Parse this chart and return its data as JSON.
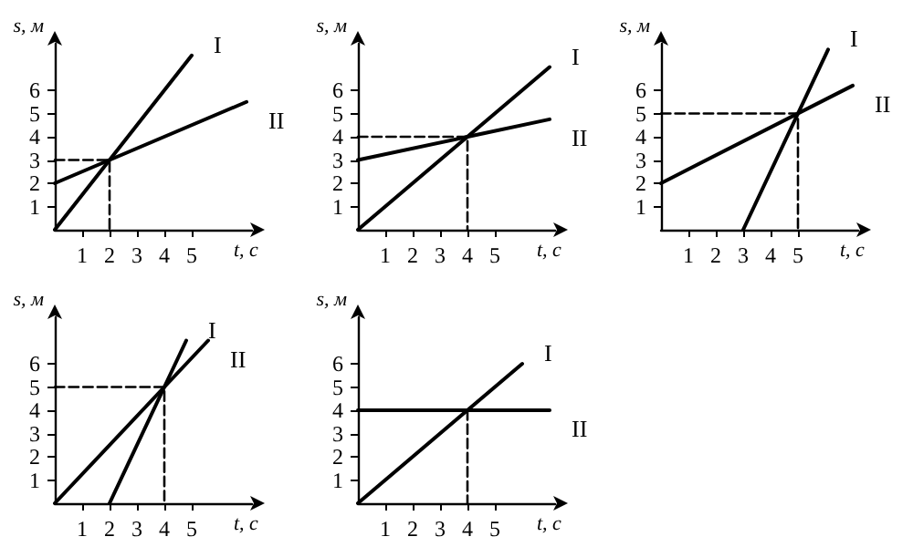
{
  "chart_data": [
    {
      "type": "line",
      "xlabel": "t, с",
      "ylabel": "s, м",
      "xlim": [
        0,
        7.2
      ],
      "ylim": [
        0,
        8
      ],
      "xticks": [
        1,
        2,
        3,
        4,
        5
      ],
      "yticks": [
        1,
        2,
        3,
        4,
        5,
        6
      ],
      "marker": "none",
      "series": [
        {
          "name": "I",
          "color": "#000000",
          "x": [
            0,
            5
          ],
          "values": [
            0,
            7.5
          ]
        },
        {
          "name": "II",
          "color": "#000000",
          "x": [
            0,
            7
          ],
          "values": [
            2,
            5.5
          ]
        },
        {
          "color": "#000000",
          "line_style": "dashed",
          "x": [
            0,
            2,
            2
          ],
          "values": [
            3,
            3,
            0
          ]
        }
      ]
    },
    {
      "type": "line",
      "xlabel": "t, с",
      "ylabel": "s, м",
      "xlim": [
        0,
        7.2
      ],
      "ylim": [
        0,
        8
      ],
      "xticks": [
        1,
        2,
        3,
        4,
        5
      ],
      "yticks": [
        1,
        2,
        3,
        4,
        5,
        6
      ],
      "marker": "none",
      "series": [
        {
          "name": "I",
          "color": "#000000",
          "x": [
            0,
            7
          ],
          "values": [
            0,
            7
          ]
        },
        {
          "name": "II",
          "color": "#000000",
          "x": [
            0,
            7
          ],
          "values": [
            3,
            4.75
          ]
        },
        {
          "color": "#000000",
          "line_style": "dashed",
          "x": [
            0,
            4,
            4
          ],
          "values": [
            4,
            4,
            0
          ]
        }
      ]
    },
    {
      "type": "line",
      "xlabel": "t, с",
      "ylabel": "s, м",
      "xlim": [
        0,
        7.2
      ],
      "ylim": [
        0,
        8
      ],
      "xticks": [
        1,
        2,
        3,
        4,
        5
      ],
      "yticks": [
        1,
        2,
        3,
        4,
        5,
        6
      ],
      "marker": "none",
      "series": [
        {
          "name": "I",
          "color": "#000000",
          "x": [
            3,
            6.1
          ],
          "values": [
            0,
            7.75
          ]
        },
        {
          "name": "II",
          "color": "#000000",
          "x": [
            0,
            7
          ],
          "values": [
            2,
            6.2
          ]
        },
        {
          "color": "#000000",
          "line_style": "dashed",
          "x": [
            0,
            5,
            5
          ],
          "values": [
            5,
            5,
            0
          ]
        }
      ]
    },
    {
      "type": "line",
      "xlabel": "t, с",
      "ylabel": "s, м",
      "xlim": [
        0,
        7.2
      ],
      "ylim": [
        0,
        8
      ],
      "xticks": [
        1,
        2,
        3,
        4,
        5
      ],
      "yticks": [
        1,
        2,
        3,
        4,
        5,
        6
      ],
      "marker": "none",
      "series": [
        {
          "name": "I",
          "color": "#000000",
          "x": [
            2,
            4.8
          ],
          "values": [
            0,
            7
          ]
        },
        {
          "name": "II",
          "color": "#000000",
          "x": [
            0,
            5.6
          ],
          "values": [
            0,
            7
          ]
        },
        {
          "color": "#000000",
          "line_style": "dashed",
          "x": [
            0,
            4,
            4
          ],
          "values": [
            5,
            5,
            0
          ]
        }
      ]
    },
    {
      "type": "line",
      "xlabel": "t, с",
      "ylabel": "s, м",
      "xlim": [
        0,
        7.2
      ],
      "ylim": [
        0,
        8
      ],
      "xticks": [
        1,
        2,
        3,
        4,
        5
      ],
      "yticks": [
        1,
        2,
        3,
        4,
        5,
        6
      ],
      "marker": "none",
      "series": [
        {
          "name": "I",
          "color": "#000000",
          "x": [
            0,
            6
          ],
          "values": [
            0,
            6
          ]
        },
        {
          "name": "II",
          "color": "#000000",
          "x": [
            0,
            7
          ],
          "values": [
            4,
            4
          ]
        },
        {
          "color": "#000000",
          "line_style": "dashed",
          "x": [
            4,
            4
          ],
          "values": [
            4,
            0
          ]
        }
      ]
    }
  ]
}
